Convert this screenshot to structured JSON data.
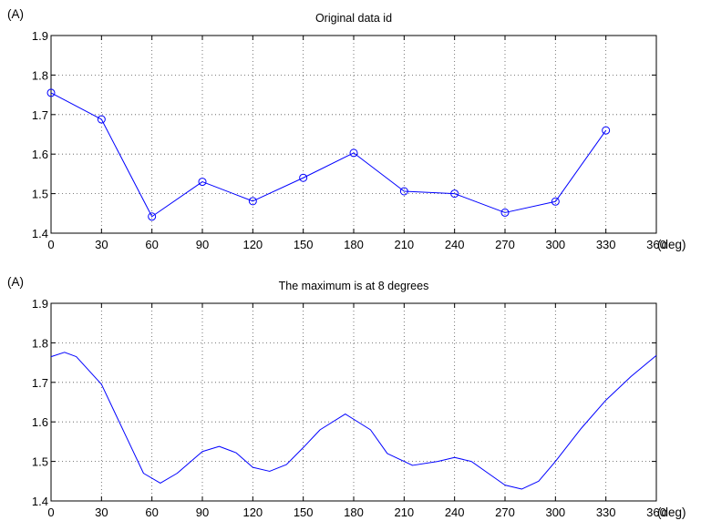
{
  "chart_data": [
    {
      "type": "line",
      "title": "Original data id",
      "ylabel": "(A)",
      "xlabel": "(deg)",
      "x": [
        0,
        30,
        60,
        90,
        120,
        150,
        180,
        210,
        240,
        270,
        300,
        330
      ],
      "series": [
        {
          "values": [
            1.755,
            1.688,
            1.442,
            1.53,
            1.481,
            1.54,
            1.603,
            1.506,
            1.5,
            1.452,
            1.48,
            1.66
          ]
        }
      ],
      "markers": "circle",
      "xlim": [
        0,
        360
      ],
      "ylim": [
        1.4,
        1.9
      ],
      "xticks": [
        "0",
        "30",
        "60",
        "90",
        "120",
        "150",
        "180",
        "210",
        "240",
        "270",
        "300",
        "330",
        "360"
      ],
      "yticks": [
        "1.4",
        "1.5",
        "1.6",
        "1.7",
        "1.8",
        "1.9"
      ],
      "grid": true,
      "color": "#0000ff"
    },
    {
      "type": "line",
      "title": "The maximum is at 8 degrees",
      "ylabel": "(A)",
      "xlabel": "(deg)",
      "x": [
        0,
        8,
        15,
        30,
        45,
        55,
        65,
        75,
        90,
        100,
        110,
        120,
        130,
        140,
        150,
        160,
        175,
        190,
        200,
        215,
        230,
        240,
        250,
        260,
        270,
        280,
        290,
        300,
        315,
        330,
        345,
        360
      ],
      "series": [
        {
          "values": [
            1.765,
            1.776,
            1.765,
            1.695,
            1.56,
            1.47,
            1.445,
            1.47,
            1.525,
            1.538,
            1.522,
            1.485,
            1.475,
            1.492,
            1.535,
            1.58,
            1.62,
            1.58,
            1.52,
            1.49,
            1.5,
            1.51,
            1.5,
            1.47,
            1.44,
            1.43,
            1.45,
            1.5,
            1.582,
            1.655,
            1.715,
            1.768
          ]
        }
      ],
      "markers": "none",
      "xlim": [
        0,
        360
      ],
      "ylim": [
        1.4,
        1.9
      ],
      "xticks": [
        "0",
        "30",
        "60",
        "90",
        "120",
        "150",
        "180",
        "210",
        "240",
        "270",
        "300",
        "330",
        "360"
      ],
      "yticks": [
        "1.4",
        "1.5",
        "1.6",
        "1.7",
        "1.8",
        "1.9"
      ],
      "grid": true,
      "color": "#0000ff"
    }
  ]
}
